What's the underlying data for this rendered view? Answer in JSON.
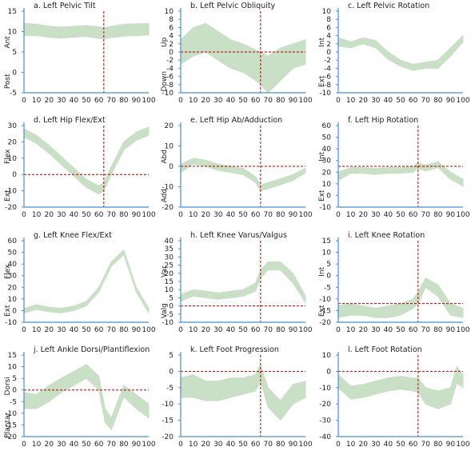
{
  "colors": {
    "band": "#c9dfc6",
    "axis": "#4a8fd0",
    "ref": "#b00000",
    "text": "#222222"
  },
  "chart_data": [
    {
      "type": "area",
      "title": "a. Left Pelvic Tilt",
      "dir_high": "Ant",
      "dir_low": "Post",
      "ylim": [
        -5,
        15
      ],
      "yticks": [
        -5,
        0,
        5,
        10,
        15
      ],
      "xticks": [
        0,
        10,
        20,
        30,
        40,
        50,
        60,
        70,
        80,
        90,
        100
      ],
      "xlim": [
        0,
        100
      ],
      "ref_x": 64,
      "ref_y": null,
      "x": [
        0,
        10,
        20,
        30,
        40,
        50,
        60,
        64,
        70,
        80,
        90,
        100
      ],
      "upper": [
        12,
        11.8,
        11.3,
        11.1,
        11.3,
        11.5,
        11.2,
        11,
        11.3,
        11.8,
        11.9,
        12
      ],
      "lower": [
        9,
        9,
        8.6,
        8.4,
        8.6,
        8.8,
        8.3,
        8.2,
        8.5,
        8.9,
        9,
        9.2
      ]
    },
    {
      "type": "area",
      "title": "b. Left Pelvic Obliquity",
      "dir_high": "Up",
      "dir_low": "Down",
      "ylim": [
        -10,
        10
      ],
      "yticks": [
        -10,
        -8,
        -6,
        -4,
        -2,
        0,
        2,
        4,
        6,
        8,
        10
      ],
      "xticks": [
        0,
        10,
        20,
        30,
        40,
        50,
        60,
        70,
        80,
        90,
        100
      ],
      "xlim": [
        0,
        100
      ],
      "ref_x": 64,
      "ref_y": 0,
      "x": [
        0,
        10,
        20,
        30,
        40,
        50,
        60,
        64,
        70,
        80,
        90,
        100
      ],
      "upper": [
        3,
        6,
        7,
        5,
        3,
        2,
        0.5,
        0,
        -1,
        1,
        2,
        3
      ],
      "lower": [
        -3,
        -1,
        0,
        -2,
        -4,
        -5,
        -7,
        -8,
        -10,
        -7,
        -4,
        -3
      ]
    },
    {
      "type": "area",
      "title": "c. Left Pelvic Rotation",
      "dir_high": "Int",
      "dir_low": "Ext",
      "ylim": [
        -10,
        10
      ],
      "yticks": [
        -10,
        -8,
        -6,
        -4,
        -2,
        0,
        2,
        4,
        6,
        8,
        10
      ],
      "xticks": [
        0,
        10,
        20,
        30,
        40,
        50,
        60,
        70,
        80,
        90,
        100
      ],
      "xlim": [
        0,
        100
      ],
      "ref_x": null,
      "ref_y": null,
      "x": [
        0,
        10,
        20,
        30,
        40,
        50,
        60,
        70,
        80,
        90,
        100
      ],
      "upper": [
        3.5,
        2.5,
        3.5,
        2.8,
        0,
        -2,
        -3,
        -2.5,
        -2,
        1,
        4
      ],
      "lower": [
        1.5,
        1,
        2,
        1,
        -1.8,
        -3.5,
        -4.5,
        -4,
        -4,
        -1,
        2.5
      ]
    },
    {
      "type": "area",
      "title": "d. Left Hip Flex/Ext",
      "dir_high": "Flex",
      "dir_low": "Ext",
      "ylim": [
        -20,
        30
      ],
      "yticks": [
        -20,
        -10,
        0,
        10,
        20,
        30
      ],
      "xticks": [
        0,
        10,
        20,
        30,
        40,
        50,
        60,
        70,
        80,
        90,
        100
      ],
      "xlim": [
        0,
        100
      ],
      "ref_x": 64,
      "ref_y": 0,
      "x": [
        0,
        10,
        20,
        30,
        40,
        50,
        60,
        64,
        70,
        80,
        90,
        100
      ],
      "upper": [
        28,
        24,
        18,
        11,
        4,
        -3,
        -7,
        -5,
        5,
        20,
        26,
        29
      ],
      "lower": [
        23,
        19,
        13,
        6,
        -1,
        -8,
        -12,
        -10,
        0,
        15,
        21,
        24
      ]
    },
    {
      "type": "area",
      "title": "e. Left Hip Ab/Adduction",
      "dir_high": "Abd",
      "dir_low": "Add",
      "ylim": [
        -20,
        20
      ],
      "yticks": [
        -20,
        -10,
        0,
        10,
        20
      ],
      "xticks": [
        0,
        10,
        20,
        30,
        40,
        50,
        60,
        70,
        80,
        90,
        100
      ],
      "xlim": [
        0,
        100
      ],
      "ref_x": 64,
      "ref_y": 0,
      "x": [
        0,
        10,
        20,
        30,
        40,
        50,
        60,
        64,
        70,
        80,
        90,
        100
      ],
      "upper": [
        1,
        4,
        3,
        1,
        0,
        -1,
        -5,
        -9,
        -8,
        -6,
        -4,
        -1
      ],
      "lower": [
        -3,
        1,
        0,
        -2,
        -3,
        -4,
        -8,
        -12,
        -11,
        -9,
        -7,
        -3
      ]
    },
    {
      "type": "area",
      "title": "f. Left Hip Rotation",
      "dir_high": "Int",
      "dir_low": "Ext",
      "ylim": [
        -10,
        60
      ],
      "yticks": [
        -10,
        0,
        10,
        20,
        30,
        40,
        50,
        60
      ],
      "xticks": [
        0,
        10,
        20,
        30,
        40,
        50,
        60,
        70,
        80,
        90,
        100
      ],
      "xlim": [
        0,
        100
      ],
      "ref_x": 64,
      "ref_y": 25,
      "x": [
        0,
        10,
        20,
        30,
        40,
        50,
        60,
        64,
        70,
        80,
        90,
        100
      ],
      "upper": [
        20,
        24,
        24,
        23,
        24,
        24,
        25,
        28,
        26,
        29,
        20,
        14
      ],
      "lower": [
        13,
        19,
        19,
        18,
        19,
        19,
        20,
        23,
        21,
        24,
        14,
        8
      ]
    },
    {
      "type": "area",
      "title": "g. Left Knee Flex/Ext",
      "dir_high": "Flex",
      "dir_low": "Ext",
      "ylim": [
        -10,
        60
      ],
      "yticks": [
        -10,
        0,
        10,
        20,
        30,
        40,
        50,
        60
      ],
      "xticks": [
        0,
        10,
        20,
        30,
        40,
        50,
        60,
        70,
        80,
        90,
        100
      ],
      "xlim": [
        0,
        100
      ],
      "ref_x": null,
      "ref_y": null,
      "x": [
        0,
        10,
        20,
        30,
        40,
        50,
        60,
        70,
        80,
        90,
        100
      ],
      "upper": [
        2,
        5,
        3,
        2,
        4,
        8,
        20,
        42,
        52,
        20,
        2
      ],
      "lower": [
        -2,
        1,
        -1,
        -2,
        0,
        4,
        16,
        38,
        48,
        16,
        -2
      ]
    },
    {
      "type": "area",
      "title": "h. Left Knee Varus/Valgus",
      "dir_high": "Var",
      "dir_low": "Valg",
      "ylim": [
        -10,
        40
      ],
      "yticks": [
        -10,
        -5,
        0,
        5,
        10,
        15,
        20,
        25,
        30,
        35,
        40
      ],
      "xticks": [
        0,
        10,
        20,
        30,
        40,
        50,
        60,
        70,
        80,
        90,
        100
      ],
      "xlim": [
        0,
        100
      ],
      "ref_x": 64,
      "ref_y": 0,
      "x": [
        0,
        10,
        20,
        30,
        40,
        50,
        60,
        64,
        70,
        80,
        90,
        100
      ],
      "upper": [
        7,
        10,
        9,
        8,
        9,
        10,
        14,
        22,
        27,
        27,
        20,
        6
      ],
      "lower": [
        3,
        6,
        5,
        4,
        5,
        6,
        9,
        17,
        22,
        22,
        14,
        2
      ]
    },
    {
      "type": "area",
      "title": "i. Left Knee Rotation",
      "dir_high": "Int",
      "dir_low": "Ext",
      "ylim": [
        -20,
        15
      ],
      "yticks": [
        -20,
        -15,
        -10,
        -5,
        0,
        5,
        10,
        15
      ],
      "xticks": [
        0,
        10,
        20,
        30,
        40,
        50,
        60,
        70,
        80,
        90,
        100
      ],
      "xlim": [
        0,
        100
      ],
      "ref_x": 64,
      "ref_y": -12,
      "x": [
        0,
        10,
        20,
        30,
        40,
        50,
        60,
        64,
        70,
        80,
        90,
        100
      ],
      "upper": [
        -13,
        -12,
        -13,
        -14,
        -13,
        -12,
        -10,
        -7,
        -1,
        -4,
        -12,
        -14
      ],
      "lower": [
        -18,
        -17,
        -17,
        -18,
        -18,
        -17,
        -14,
        -12,
        -5,
        -9,
        -17,
        -18
      ]
    },
    {
      "type": "area",
      "title": "j. Left Ankle Dorsi/Plantiflexion",
      "dir_high": "Dorsi",
      "dir_low": "Plantar",
      "ylim": [
        -20,
        15
      ],
      "yticks": [
        -20,
        -15,
        -10,
        -5,
        0,
        5,
        10,
        15
      ],
      "xticks": [
        0,
        10,
        20,
        30,
        40,
        50,
        60,
        70,
        80,
        90,
        100
      ],
      "xlim": [
        0,
        100
      ],
      "ref_x": null,
      "ref_y": 0,
      "x": [
        0,
        10,
        20,
        30,
        40,
        50,
        60,
        65,
        70,
        80,
        90,
        100
      ],
      "upper": [
        -1,
        -2,
        2,
        5,
        8,
        11,
        6,
        -8,
        -12,
        2,
        -2,
        -6
      ],
      "lower": [
        -8,
        -8,
        -5,
        -1,
        2,
        5,
        0,
        -14,
        -17,
        -3,
        -8,
        -12
      ]
    },
    {
      "type": "area",
      "title": "k. Left Foot Progression",
      "dir_high": "",
      "dir_low": "",
      "ylim": [
        -20,
        5
      ],
      "yticks": [
        -20,
        -15,
        -10,
        -5,
        0,
        5
      ],
      "xticks": [
        0,
        10,
        20,
        30,
        40,
        50,
        60,
        70,
        80,
        90,
        100
      ],
      "xlim": [
        0,
        100
      ],
      "ref_x": 64,
      "ref_y": 0,
      "x": [
        0,
        10,
        20,
        30,
        40,
        50,
        60,
        64,
        70,
        80,
        90,
        100
      ],
      "upper": [
        -2,
        -1,
        -3,
        -3,
        -2,
        -2,
        -1,
        2,
        -5,
        -9,
        -4,
        -3
      ],
      "lower": [
        -8,
        -8,
        -9,
        -9,
        -8,
        -7,
        -6,
        -3,
        -11,
        -15,
        -10,
        -8
      ]
    },
    {
      "type": "area",
      "title": "l. Left Foot Rotation",
      "dir_high": "",
      "dir_low": "",
      "ylim": [
        -40,
        10
      ],
      "yticks": [
        -40,
        -30,
        -20,
        -10,
        0,
        10
      ],
      "xticks": [
        0,
        10,
        20,
        30,
        40,
        50,
        60,
        70,
        80,
        90,
        100
      ],
      "xlim": [
        0,
        100
      ],
      "ref_x": 64,
      "ref_y": 0,
      "x": [
        0,
        10,
        20,
        30,
        40,
        50,
        60,
        64,
        70,
        80,
        90,
        95,
        100
      ],
      "upper": [
        -2,
        -9,
        -8,
        -6,
        -4,
        -3,
        -4,
        -4,
        -10,
        -12,
        -10,
        3,
        -2
      ],
      "lower": [
        -10,
        -17,
        -16,
        -14,
        -12,
        -11,
        -12,
        -13,
        -20,
        -23,
        -20,
        -7,
        -10
      ]
    }
  ]
}
